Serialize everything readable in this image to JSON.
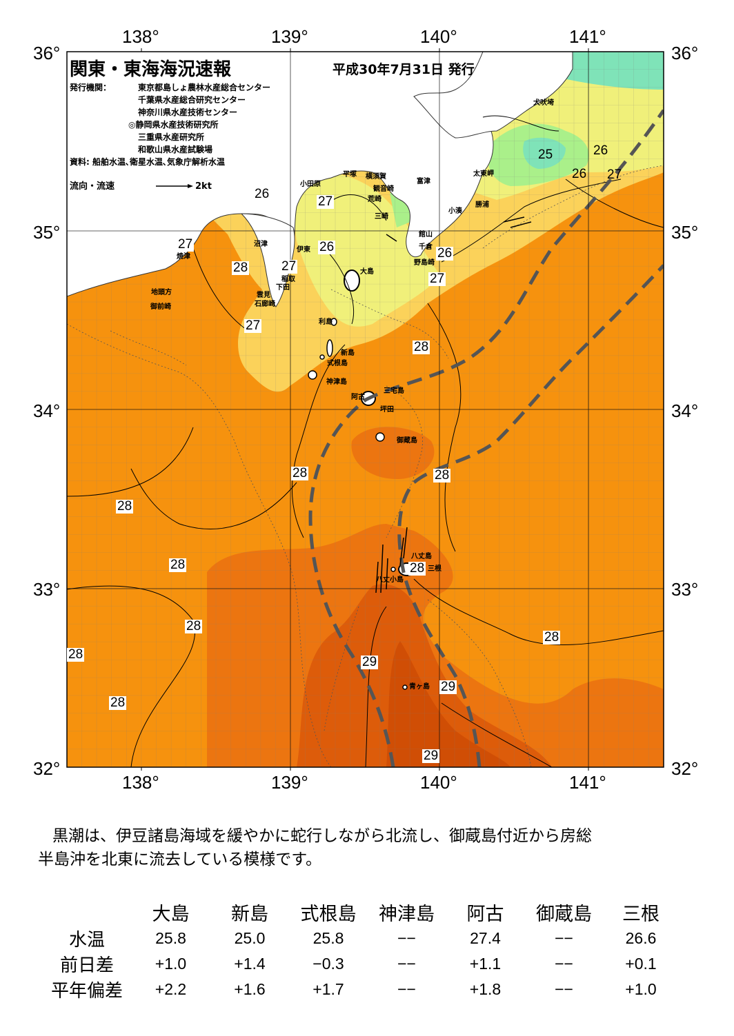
{
  "header": {
    "title": "関東・東海海況速報",
    "date": "平成30年7月31日 発行",
    "issuer_label": "発行機関：",
    "issuers": [
      "東京都島しょ農林水産総合センター",
      "千葉県水産総合研究センター",
      "神奈川県水産技術センター",
      "◎静岡県水産技術研究所",
      "三重県水産研究所",
      "和歌山県水産試験場"
    ],
    "source": "資料: 船舶水温､衛星水温､気象庁解析水温",
    "flow_legend": "流向・流速",
    "flow_scale": "2kt"
  },
  "axes": {
    "lon_labels": [
      "138°",
      "139°",
      "140°",
      "141°"
    ],
    "lat_labels": [
      "36°",
      "35°",
      "34°",
      "33°",
      "32°"
    ]
  },
  "colors": {
    "sst_24": "#7fe3b8",
    "sst_25": "#aaf08a",
    "sst_26": "#f0f07a",
    "sst_27": "#fbd25a",
    "sst_28": "#f6920e",
    "sst_28_5": "#ec7510",
    "sst_29": "#dd5c0a",
    "land": "#ffffff",
    "kuroshio_axis": "#555555"
  },
  "isotherm_labels": [
    "26",
    "27",
    "28",
    "27",
    "27",
    "26",
    "27",
    "26",
    "27",
    "28",
    "28",
    "28",
    "28",
    "28",
    "28",
    "28",
    "28",
    "28",
    "29",
    "29",
    "29",
    "28",
    "25",
    "26",
    "26",
    "27",
    "28"
  ],
  "place_names": {
    "inubozaki": "犬吠埼",
    "taitomisaki": "太東岬",
    "katsuura": "勝浦",
    "kominato": "小湊",
    "odawara": "小田原",
    "hiratsuka": "平塚",
    "yokosuka": "横須賀",
    "kannonzaki": "観音崎",
    "futtsu": "富津",
    "araizaki": "荒崎",
    "misaki": "三崎",
    "tateyama": "館山",
    "chikura": "千倉",
    "nojimazaki": "野島崎",
    "numazu": "沼津",
    "yaizu": "焼津",
    "ito": "伊東",
    "inatori": "稲取",
    "shimoda": "下田",
    "kumomi": "雲見",
    "irozaki": "石廊崎",
    "jitogata": "地頭方",
    "omaezaki": "御前崎",
    "oshima": "大島",
    "toshima": "利島",
    "niijima": "新島",
    "shikinejima": "式根島",
    "kozushima": "神津島",
    "miyakejima": "三宅島",
    "ako": "阿古",
    "tsubota": "坪田",
    "mikurajima": "御蔵島",
    "hachijojima": "八丈島",
    "mitsune": "三根",
    "hachijokojima": "八丈小島",
    "aogashima": "青ヶ島"
  },
  "summary": {
    "line1": "黒潮は、伊豆諸島海域を緩やかに蛇行しながら北流し、御蔵島付近から房総",
    "line2": "半島沖を北東に流去している模様です。"
  },
  "table": {
    "columns": [
      "大島",
      "新島",
      "式根島",
      "神津島",
      "阿古",
      "御蔵島",
      "三根"
    ],
    "rows": [
      {
        "label": "水温",
        "values": [
          "25.8",
          "25.0",
          "25.8",
          "−−",
          "27.4",
          "−−",
          "26.6"
        ]
      },
      {
        "label": "前日差",
        "values": [
          "+1.0",
          "+1.4",
          "−0.3",
          "−−",
          "+1.1",
          "−−",
          "+0.1"
        ]
      },
      {
        "label": "平年偏差",
        "values": [
          "+2.2",
          "+1.6",
          "+1.7",
          "−−",
          "+1.8",
          "−−",
          "+1.0"
        ]
      }
    ]
  }
}
